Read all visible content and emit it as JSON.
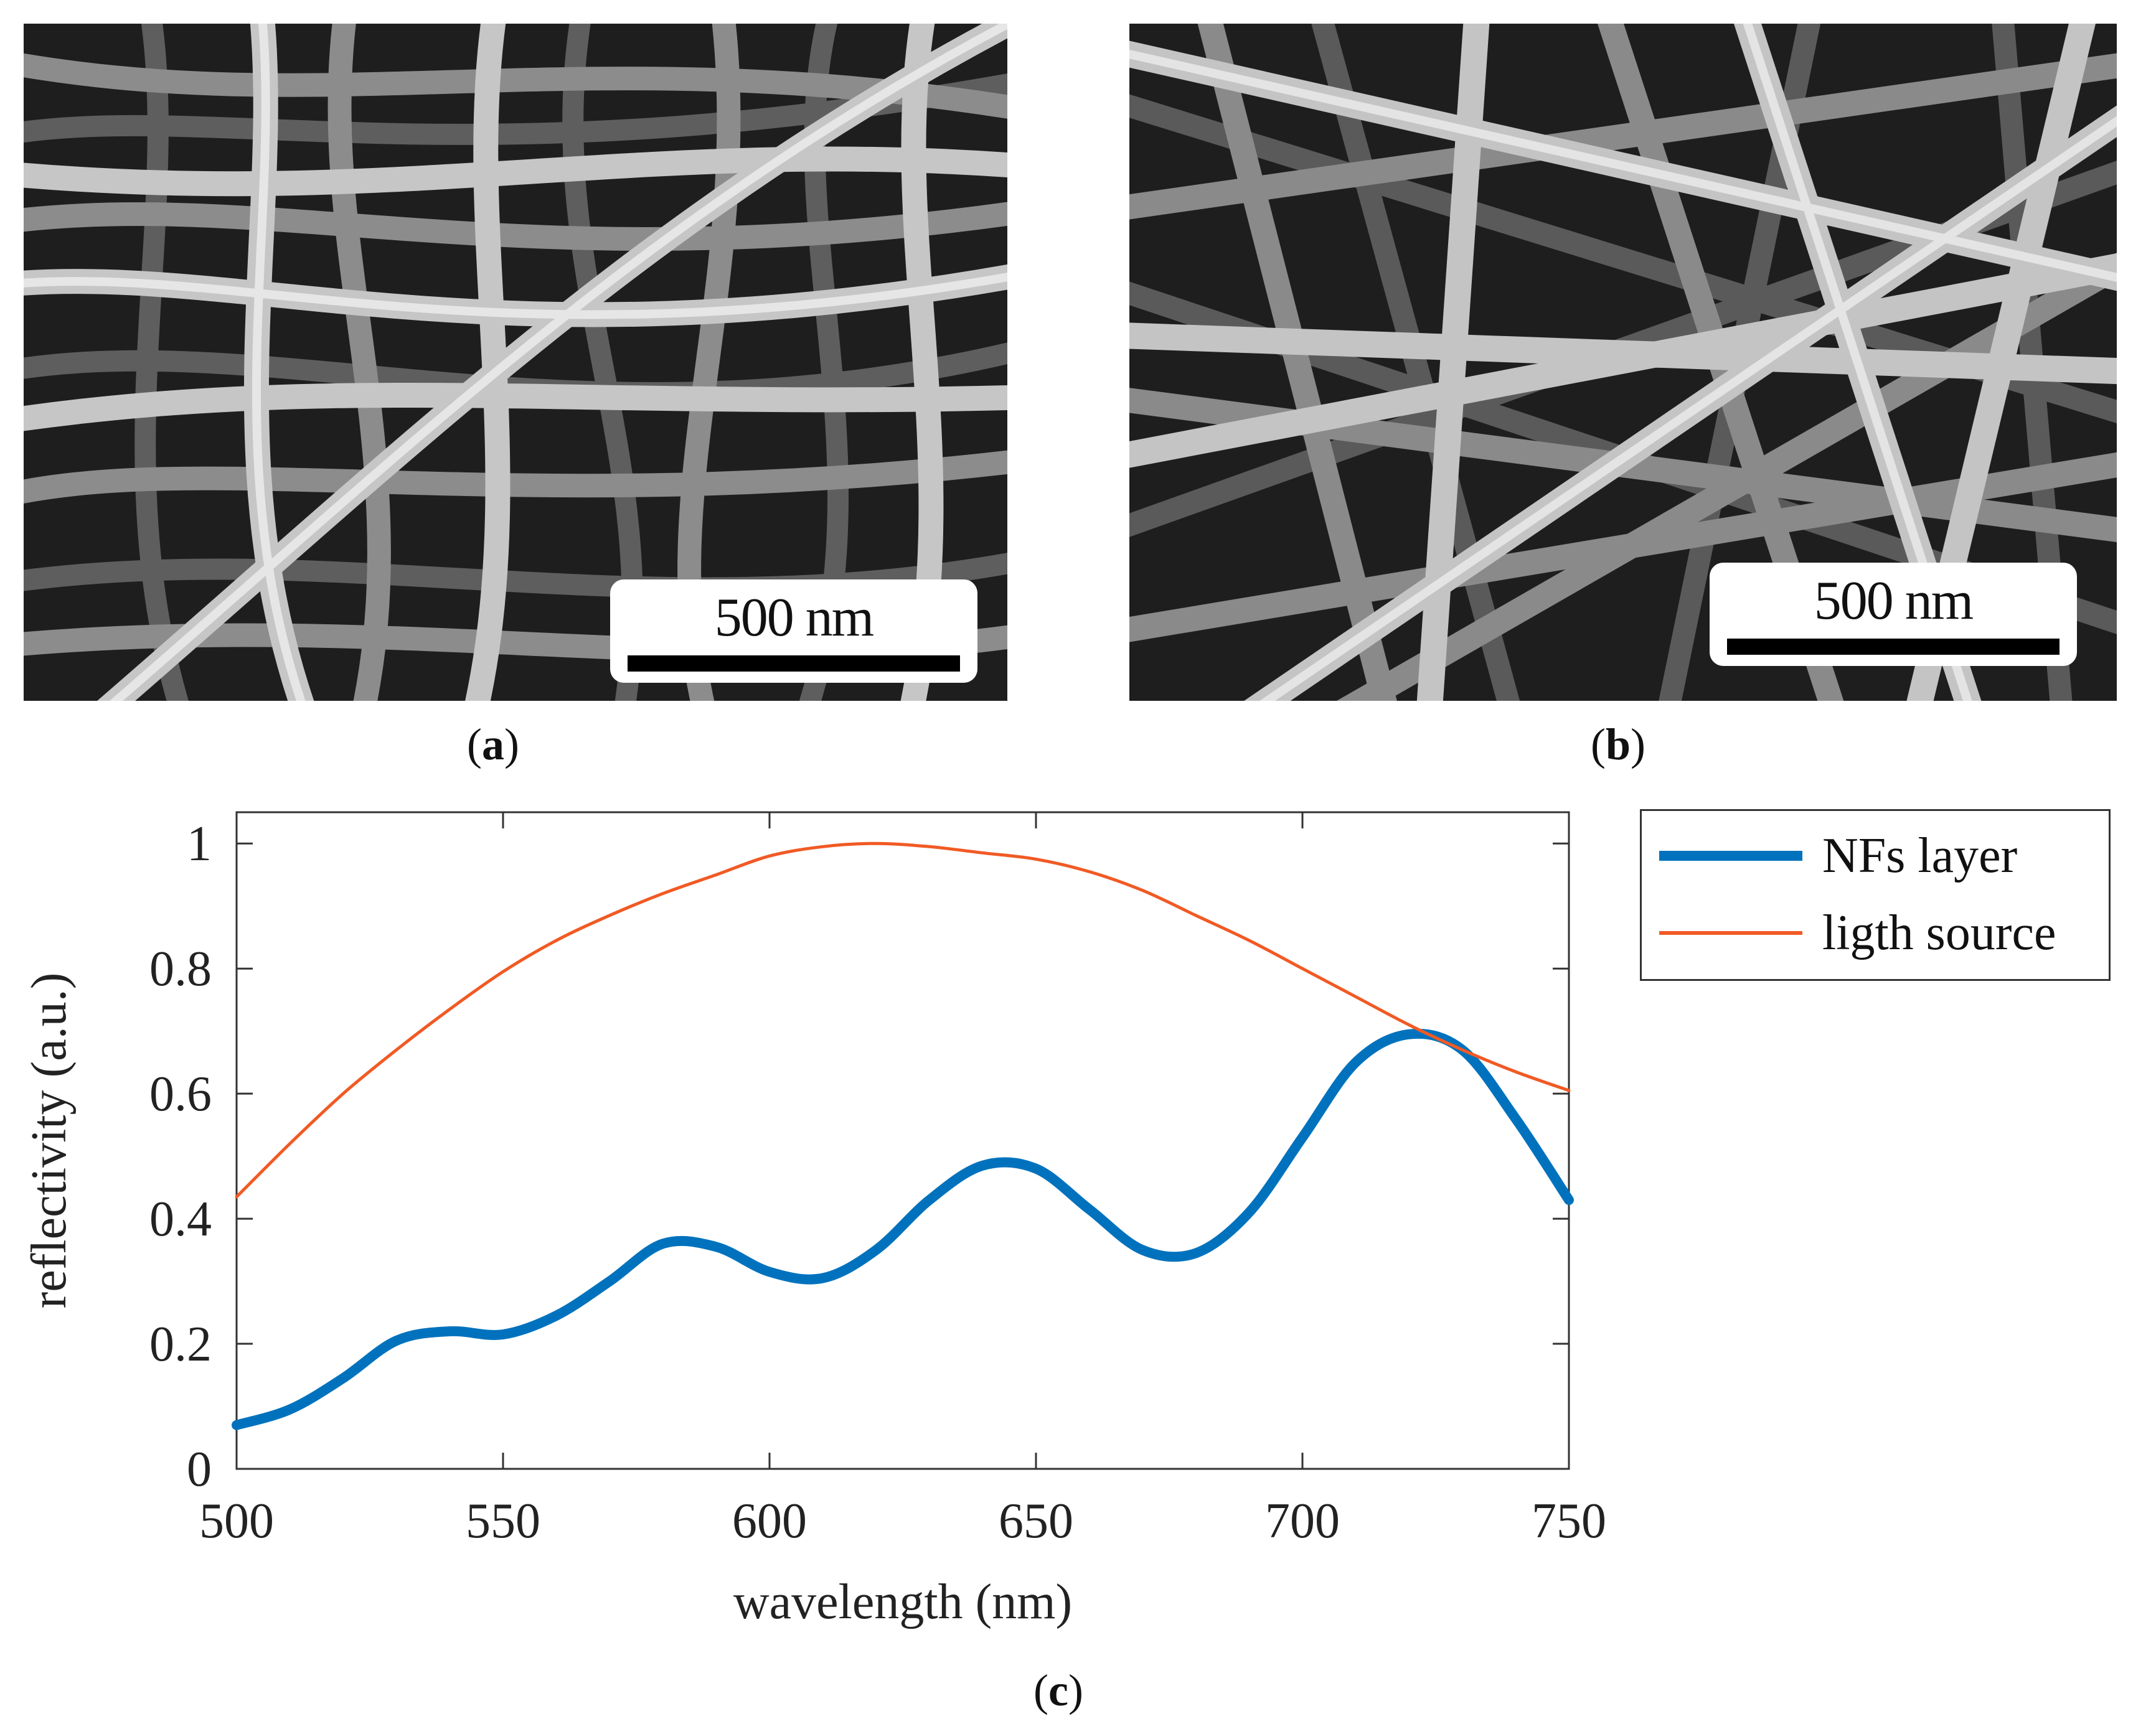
{
  "panels": {
    "a": {
      "label_open": "(",
      "label_letter": "a",
      "label_close": ")",
      "scale_bar_label": "500 nm"
    },
    "b": {
      "label_open": "(",
      "label_letter": "b",
      "label_close": ")",
      "scale_bar_label": "500 nm"
    },
    "c": {
      "label_open": "(",
      "label_letter": "c",
      "label_close": ")"
    }
  },
  "colors": {
    "nfs_layer": "#0072BD",
    "light_source": "#F15A24",
    "sem_fiber": "#c9c9c9",
    "sem_background": "#1e1e1e"
  },
  "chart_data": {
    "type": "line",
    "title": "",
    "xlabel": "wavelength (nm)",
    "ylabel": "reflectivity (a.u.)",
    "xlim": [
      500,
      750
    ],
    "ylim": [
      0,
      1.05
    ],
    "xticks": [
      500,
      550,
      600,
      650,
      700,
      750
    ],
    "yticks": [
      0,
      0.2,
      0.4,
      0.6,
      0.8,
      1
    ],
    "ytick_labels": [
      "0",
      "0.2",
      "0.4",
      "0.6",
      "0.8",
      "1"
    ],
    "grid": false,
    "legend_position": "outside-right",
    "series": [
      {
        "name": "NFs layer",
        "color": "#0072BD",
        "x": [
          500,
          510,
          520,
          530,
          540,
          550,
          560,
          570,
          580,
          590,
          600,
          610,
          620,
          630,
          640,
          650,
          660,
          670,
          680,
          690,
          700,
          710,
          720,
          730,
          740,
          750
        ],
        "y": [
          0.07,
          0.095,
          0.145,
          0.205,
          0.22,
          0.215,
          0.245,
          0.3,
          0.36,
          0.355,
          0.315,
          0.305,
          0.35,
          0.43,
          0.485,
          0.48,
          0.415,
          0.35,
          0.345,
          0.41,
          0.53,
          0.65,
          0.695,
          0.67,
          0.56,
          0.43
        ]
      },
      {
        "name": "ligth source",
        "color": "#F15A24",
        "x": [
          500,
          510,
          520,
          530,
          540,
          550,
          560,
          570,
          580,
          590,
          600,
          610,
          620,
          630,
          640,
          650,
          660,
          670,
          680,
          690,
          700,
          710,
          720,
          730,
          740,
          750
        ],
        "y": [
          0.435,
          0.52,
          0.6,
          0.67,
          0.735,
          0.795,
          0.845,
          0.885,
          0.92,
          0.95,
          0.98,
          0.995,
          1.0,
          0.995,
          0.985,
          0.975,
          0.955,
          0.925,
          0.885,
          0.845,
          0.8,
          0.755,
          0.71,
          0.67,
          0.635,
          0.605
        ]
      }
    ]
  }
}
